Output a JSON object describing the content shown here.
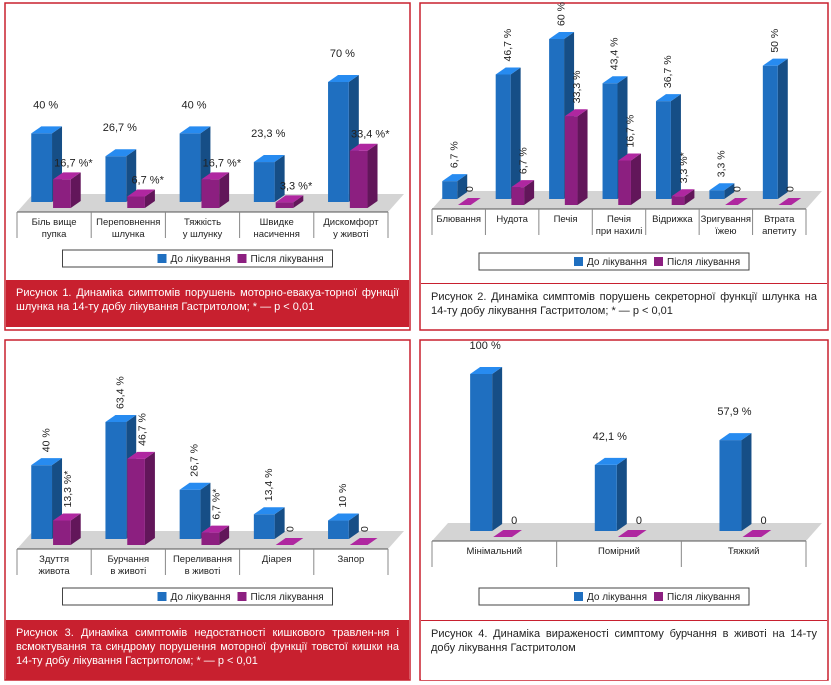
{
  "chart_data": [
    {
      "type": "bar",
      "categories": [
        "Біль вище\nпупка",
        "Переповнення\nшлунка",
        "Тяжкість\nу шлунку",
        "Швидке\nнасичення",
        "Дискомфорт\nу животі"
      ],
      "series": [
        {
          "name": "До лікування",
          "color": "#1f6fc0",
          "values": [
            40,
            26.7,
            40,
            23.3,
            70
          ],
          "value_labels": [
            "40 %",
            "26,7 %",
            "40 %",
            "23,3 %",
            "70 %"
          ]
        },
        {
          "name": "Після лікування",
          "color": "#8c1f80",
          "values": [
            16.7,
            6.7,
            16.7,
            3.3,
            33.4
          ],
          "value_labels": [
            "16,7 %*",
            "6,7 %*",
            "16,7 %*",
            "3,3 %*",
            "33,4 %*"
          ]
        }
      ],
      "vertical_labels": false,
      "caption": "Рисунок 1. Динаміка симптомів порушень моторно-евакуа-торної функції шлунка на 14-ту добу лікування Гастритолом; * — p < 0,01"
    },
    {
      "type": "bar",
      "categories": [
        "Блювання",
        "Нудота",
        "Печія",
        "Печія\nпри нахилі",
        "Відрижка",
        "Зригування\nїжею",
        "Втрата\nапетиту"
      ],
      "series": [
        {
          "name": "До лікування",
          "color": "#1f6fc0",
          "values": [
            6.7,
            46.7,
            60,
            43.4,
            36.7,
            3.3,
            50
          ],
          "value_labels": [
            "6,7 %",
            "46,7 %",
            "60 %",
            "43,4 %",
            "36,7 %",
            "3,3 %",
            "50 %"
          ]
        },
        {
          "name": "Після лікування",
          "color": "#8c1f80",
          "values": [
            0,
            6.7,
            33.3,
            16.7,
            3.3,
            0,
            0
          ],
          "value_labels": [
            "0",
            "6,7 %",
            "33,3 %",
            "16,7 %",
            "3,3 %*",
            "0",
            "0"
          ]
        }
      ],
      "vertical_labels": true,
      "caption": "Рисунок 2. Динаміка симптомів порушень секреторної функції шлунка на 14-ту добу лікування Гастритолом; * — p < 0,01"
    },
    {
      "type": "bar",
      "categories": [
        "Здуття\nживота",
        "Бурчання\nв животі",
        "Переливання\nв животі",
        "Діарея",
        "Запор"
      ],
      "series": [
        {
          "name": "До лікування",
          "color": "#1f6fc0",
          "values": [
            40,
            63.4,
            26.7,
            13.4,
            10
          ],
          "value_labels": [
            "40 %",
            "63,4 %",
            "26,7 %",
            "13,4 %",
            "10 %"
          ]
        },
        {
          "name": "Після лікування",
          "color": "#8c1f80",
          "values": [
            13.3,
            46.7,
            6.7,
            0,
            0
          ],
          "value_labels": [
            "13,3 %*",
            "46,7 %",
            "6,7 %*",
            "0",
            "0"
          ]
        }
      ],
      "vertical_labels": true,
      "caption": "Рисунок 3. Динаміка симптомів недостатності кишкового травлен-ня і всмоктування та синдрому порушення моторної функції товстої кишки на 14-ту добу лікування Гастритолом; * — p < 0,01"
    },
    {
      "type": "bar",
      "categories": [
        "Мінімальний",
        "Помірний",
        "Тяжкий"
      ],
      "series": [
        {
          "name": "До лікування",
          "color": "#1f6fc0",
          "values": [
            100,
            42.1,
            57.9
          ],
          "value_labels": [
            "100 %",
            "42,1 %",
            "57,9 %"
          ]
        },
        {
          "name": "Після лікування",
          "color": "#8c1f80",
          "values": [
            0,
            0,
            0
          ],
          "value_labels": [
            "0",
            "0",
            "0"
          ]
        }
      ],
      "vertical_labels": false,
      "caption": "Рисунок 4. Динаміка вираженості симптому бурчання в животі на 14-ту добу лікування Гастритолом"
    }
  ]
}
